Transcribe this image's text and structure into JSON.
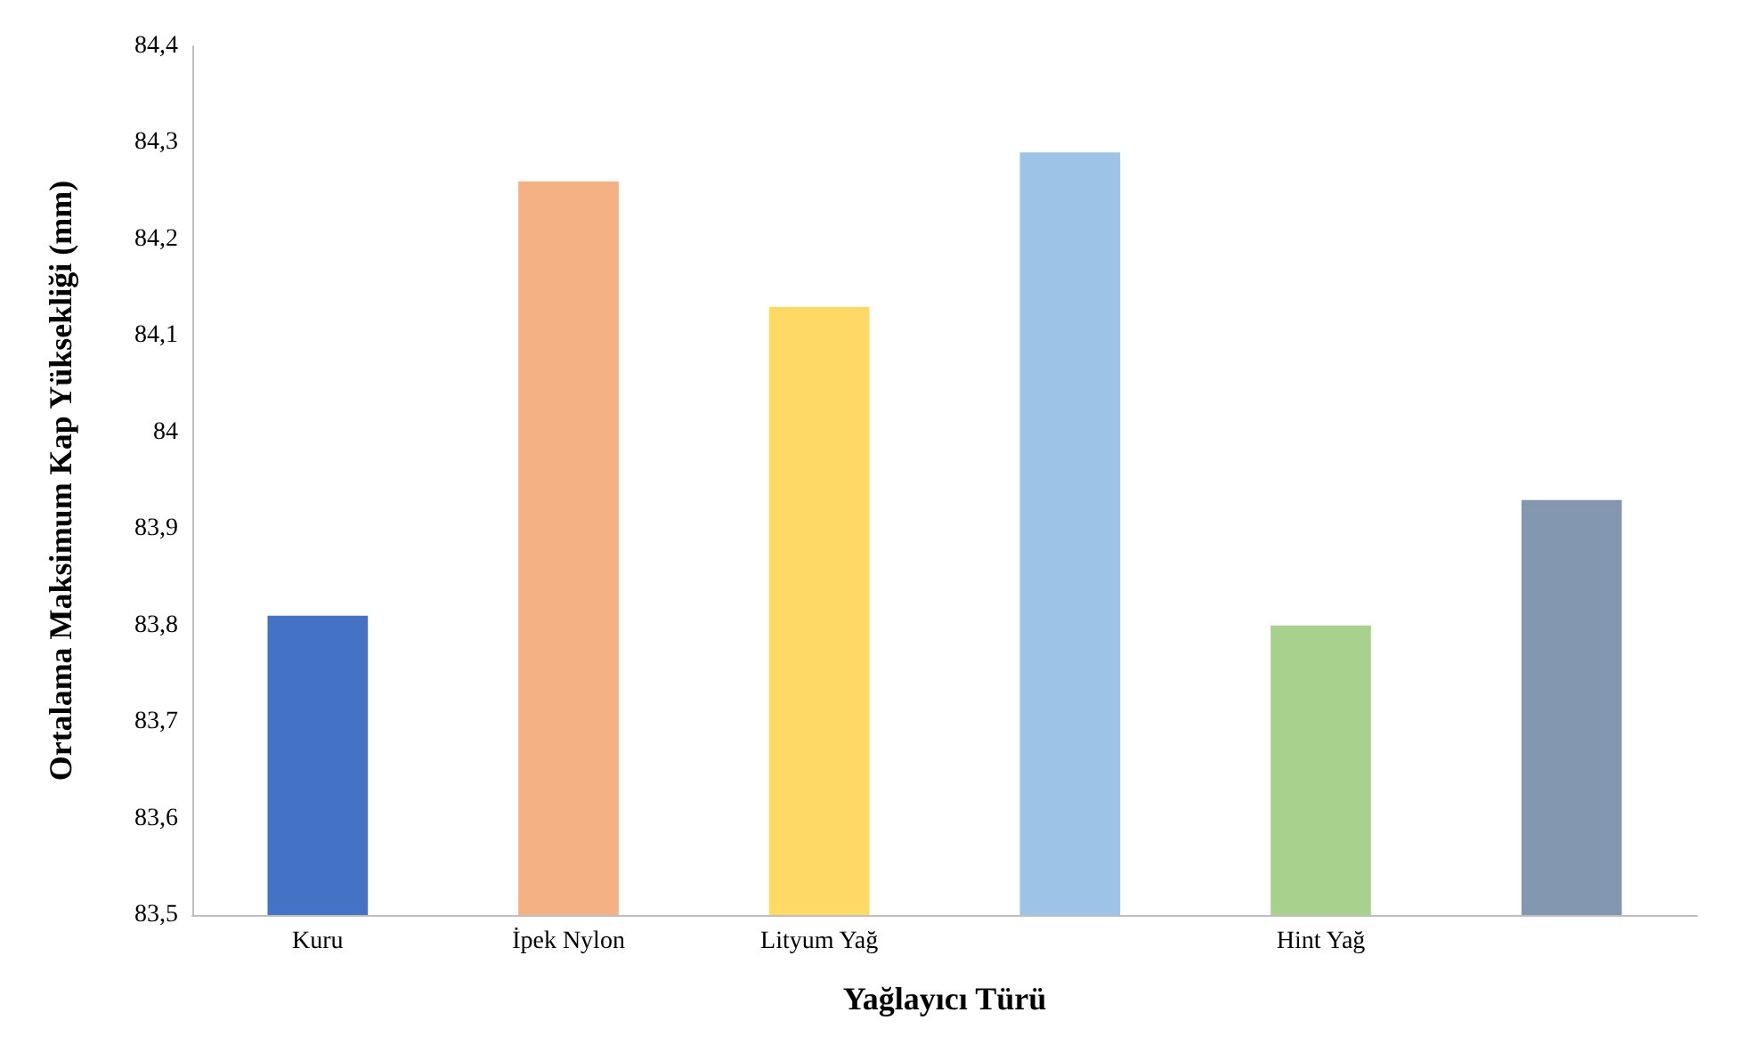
{
  "chart_data": {
    "type": "bar",
    "xlabel": "Yağlayıcı Türü",
    "ylabel": "Ortalama Maksimum Kap Yüksekliği (mm)",
    "categories": [
      "Kuru",
      "İpek Nylon",
      "Lityum Yağ",
      null,
      "Hint Yağ",
      null
    ],
    "values": [
      83.81,
      84.26,
      84.13,
      84.29,
      83.8,
      83.93
    ],
    "colors": [
      "#4472c4",
      "#f4b183",
      "#ffd966",
      "#9dc3e6",
      "#a9d18e",
      "#8497b0"
    ],
    "ylim": [
      83.5,
      84.4
    ],
    "yticks": [
      {
        "value": 83.5,
        "label": "83,5"
      },
      {
        "value": 83.6,
        "label": "83,6"
      },
      {
        "value": 83.7,
        "label": "83,7"
      },
      {
        "value": 83.8,
        "label": "83,8"
      },
      {
        "value": 83.9,
        "label": "83,9"
      },
      84,
      {
        "value": 84.1,
        "label": "84,1"
      },
      {
        "value": 84.2,
        "label": "84,2"
      },
      {
        "value": 84.3,
        "label": "84,3"
      },
      {
        "value": 84.4,
        "label": "84,4"
      }
    ],
    "grid": false
  }
}
